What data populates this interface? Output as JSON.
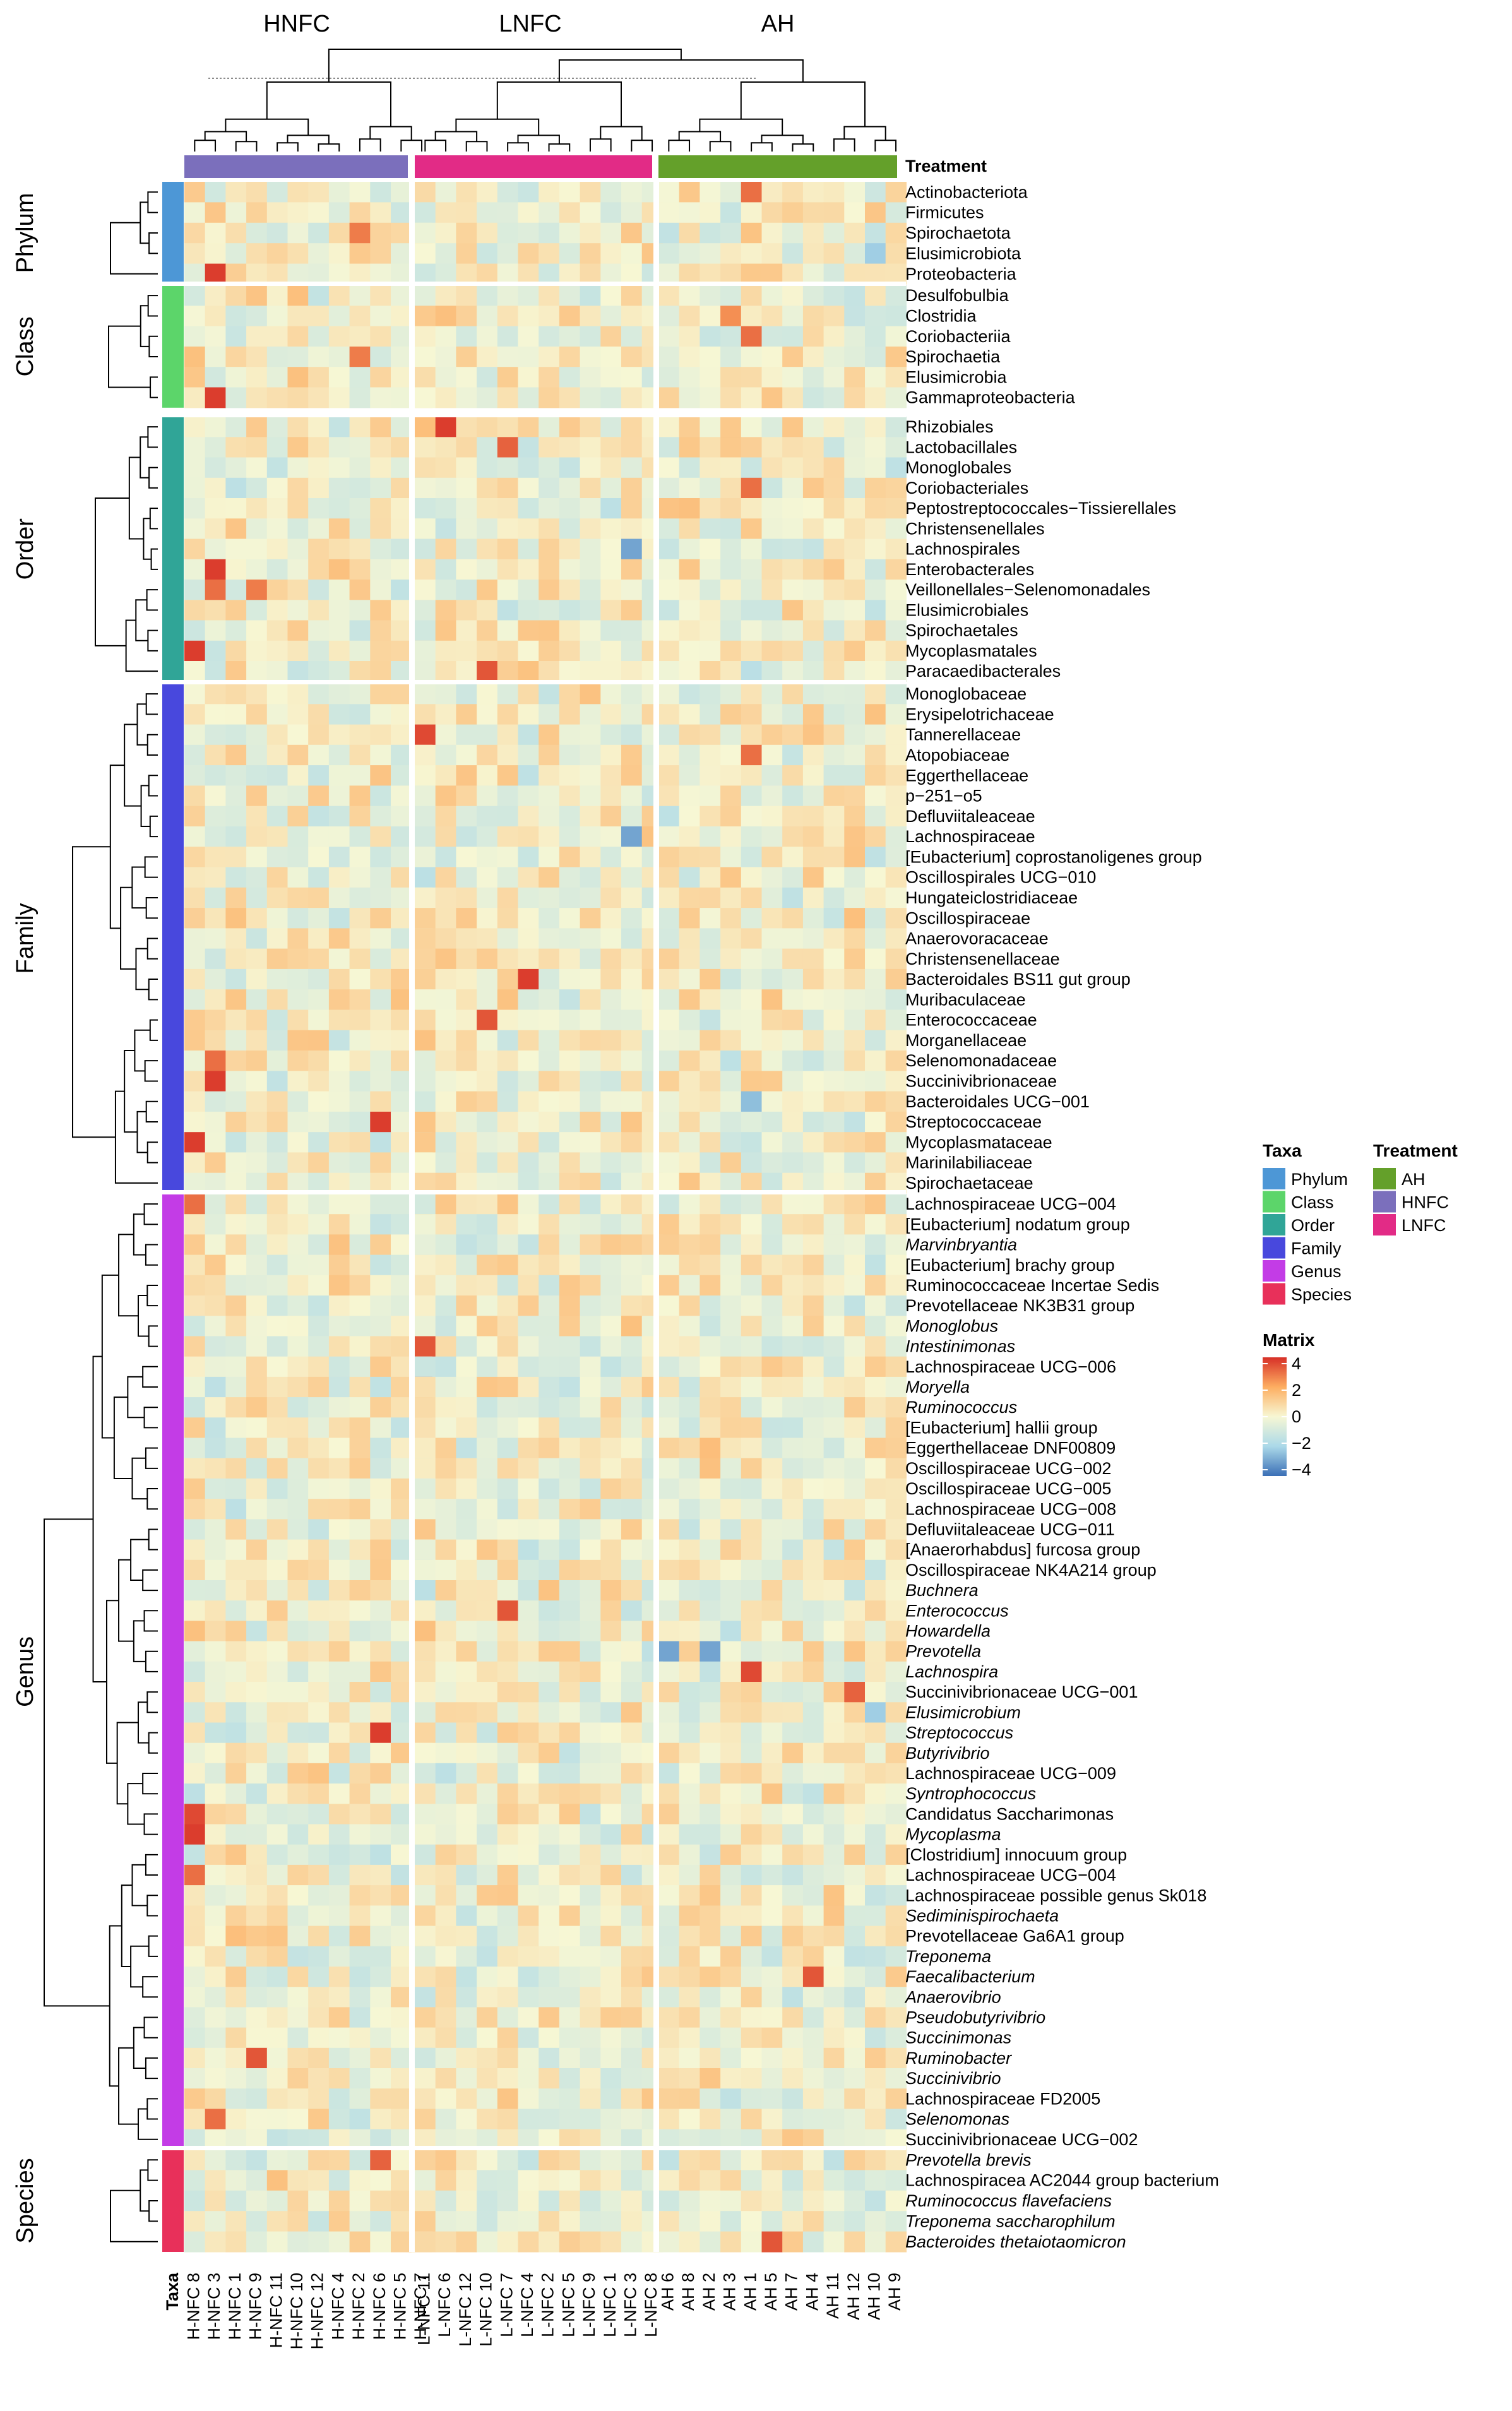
{
  "chart_data": {
    "type": "heatmap",
    "title": "",
    "column_groups": [
      {
        "name": "HNFC",
        "columns": [
          "H-NFC 8",
          "H-NFC 3",
          "H-NFC 1",
          "H-NFC 9",
          "H-NFC 11",
          "H-NFC 10",
          "H-NFC 12",
          "H-NFC 4",
          "H-NFC 2",
          "H-NFC 6",
          "H-NFC 5",
          "H-NFC 7"
        ]
      },
      {
        "name": "LNFC",
        "columns": [
          "L-NFC 11",
          "L-NFC 6",
          "L-NFC 12",
          "L-NFC 10",
          "L-NFC 7",
          "L-NFC 4",
          "L-NFC 2",
          "L-NFC 5",
          "L-NFC 9",
          "L-NFC 1",
          "L-NFC 3",
          "L-NFC 8"
        ]
      },
      {
        "name": "AH",
        "columns": [
          "AH 6",
          "AH 8",
          "AH 2",
          "AH 3",
          "AH 1",
          "AH 5",
          "AH 7",
          "AH 4",
          "AH 11",
          "AH 12",
          "AH 10",
          "AH 9"
        ]
      }
    ],
    "row_groups": [
      {
        "name": "Phylum",
        "rows": [
          "Actinobacteriota",
          "Firmicutes",
          "Spirochaetota",
          "Elusimicrobiota",
          "Proteobacteria"
        ]
      },
      {
        "name": "Class",
        "rows": [
          "Desulfobulbia",
          "Clostridia",
          "Coriobacteriia",
          "Spirochaetia",
          "Elusimicrobia",
          "Gammaproteobacteria"
        ]
      },
      {
        "name": "Order",
        "rows": [
          "Rhizobiales",
          "Lactobacillales",
          "Monoglobales",
          "Coriobacteriales",
          "Peptostreptococcales−Tissierellales",
          "Christensenellales",
          "Lachnospirales",
          "Enterobacterales",
          "Veillonellales−Selenomonadales",
          "Elusimicrobiales",
          "Spirochaetales",
          "Mycoplasmatales",
          "Paracaedibacterales"
        ]
      },
      {
        "name": "Family",
        "rows": [
          "Monoglobaceae",
          "Erysipelotrichaceae",
          "Tannerellaceae",
          "Atopobiaceae",
          "Eggerthellaceae",
          "p−251−o5",
          "Defluviitaleaceae",
          "Lachnospiraceae",
          "[Eubacterium] coprostanoligenes group",
          "Oscillospirales UCG−010",
          "Hungateiclostridiaceae",
          "Oscillospiraceae",
          "Anaerovoracaceae",
          "Christensenellaceae",
          "Bacteroidales BS11 gut group",
          "Muribaculaceae",
          "Enterococcaceae",
          "Morganellaceae",
          "Selenomonadaceae",
          "Succinivibrionaceae",
          "Bacteroidales UCG−001",
          "Streptococcaceae",
          "Mycoplasmataceae",
          "Marinilabiliaceae",
          "Spirochaetaceae"
        ]
      },
      {
        "name": "Genus",
        "rows": [
          "Lachnospiraceae UCG−004",
          "[Eubacterium] nodatum group",
          "Marvinbryantia",
          "[Eubacterium] brachy group",
          "Ruminococcaceae Incertae Sedis",
          "Prevotellaceae NK3B31 group",
          "Monoglobus",
          "Intestinimonas",
          "Lachnospiraceae UCG−006",
          "Moryella",
          "Ruminococcus",
          "[Eubacterium] hallii group",
          "Eggerthellaceae DNF00809",
          "Oscillospiraceae UCG−002",
          "Oscillospiraceae UCG−005",
          "Lachnospiraceae UCG−008",
          "Defluviitaleaceae UCG−011",
          "[Anaerorhabdus] furcosa group",
          "Oscillospiraceae NK4A214 group",
          "Buchnera",
          "Enterococcus",
          "Howardella",
          "Prevotella",
          "Lachnospira",
          "Succinivibrionaceae UCG−001",
          "Elusimicrobium",
          "Streptococcus",
          "Butyrivibrio",
          "Lachnospiraceae UCG−009",
          "Syntrophococcus",
          "Candidatus Saccharimonas",
          "Mycoplasma",
          "[Clostridium] innocuum group",
          "Lachnospiraceae UCG−004",
          "Lachnospiraceae possible genus Sk018",
          "Sediminispirochaeta",
          "Prevotellaceae Ga6A1 group",
          "Treponema",
          "Faecalibacterium",
          "Anaerovibrio",
          "Pseudobutyrivibrio",
          "Succinimonas",
          "Ruminobacter",
          "Succinivibrio",
          "Lachnospiraceae FD2005",
          "Selenomonas",
          "Succinivibrionaceae UCG−002"
        ]
      },
      {
        "name": "Species",
        "rows": [
          "Prevotella brevis",
          "Lachnospiracea AC2044 group bacterium",
          "Ruminococcus flavefaciens",
          "Treponema saccharophilum",
          "Bacteroides thetaiotaomicron"
        ]
      }
    ],
    "hot_cells": [
      {
        "row": "Actinobacteriota",
        "col": "AH 1",
        "v": 3.0
      },
      {
        "row": "Spirochaetota",
        "col": "H-NFC 2",
        "v": 2.8
      },
      {
        "row": "Proteobacteria",
        "col": "H-NFC 3",
        "v": 3.8
      },
      {
        "row": "Clostridia",
        "col": "AH 3",
        "v": 2.5
      },
      {
        "row": "Coriobacteriia",
        "col": "AH 1",
        "v": 3.0
      },
      {
        "row": "Spirochaetia",
        "col": "H-NFC 2",
        "v": 2.8
      },
      {
        "row": "Gammaproteobacteria",
        "col": "H-NFC 3",
        "v": 3.8
      },
      {
        "row": "Rhizobiales",
        "col": "L-NFC 6",
        "v": 3.8
      },
      {
        "row": "Lactobacillales",
        "col": "L-NFC 7",
        "v": 3.2
      },
      {
        "row": "Coriobacteriales",
        "col": "AH 1",
        "v": 3.0
      },
      {
        "row": "Enterobacterales",
        "col": "H-NFC 3",
        "v": 3.8
      },
      {
        "row": "Veillonellales−Selenomonadales",
        "col": "H-NFC 3",
        "v": 3.0
      },
      {
        "row": "Veillonellales−Selenomonadales",
        "col": "H-NFC 9",
        "v": 2.8
      },
      {
        "row": "Mycoplasmatales",
        "col": "H-NFC 8",
        "v": 3.8
      },
      {
        "row": "Paracaedibacterales",
        "col": "L-NFC 10",
        "v": 3.4
      },
      {
        "row": "Tannerellaceae",
        "col": "L-NFC 11",
        "v": 3.6
      },
      {
        "row": "Atopobiaceae",
        "col": "AH 1",
        "v": 3.0
      },
      {
        "row": "Bacteroidales BS11 gut group",
        "col": "L-NFC 4",
        "v": 3.8
      },
      {
        "row": "Enterococcaceae",
        "col": "L-NFC 10",
        "v": 3.4
      },
      {
        "row": "Selenomonadaceae",
        "col": "H-NFC 3",
        "v": 3.0
      },
      {
        "row": "Succinivibrionaceae",
        "col": "H-NFC 3",
        "v": 3.8
      },
      {
        "row": "Streptococcaceae",
        "col": "H-NFC 6",
        "v": 3.8
      },
      {
        "row": "Mycoplasmataceae",
        "col": "H-NFC 8",
        "v": 3.8
      },
      {
        "row": "Moryella",
        "col": "H-NFC 7",
        "v": 3.6
      },
      {
        "row": "Intestinimonas",
        "col": "L-NFC 11",
        "v": 3.4
      },
      {
        "row": "Enterococcus",
        "col": "L-NFC 7",
        "v": 3.4
      },
      {
        "row": "Lachnospira",
        "col": "AH 1",
        "v": 3.6
      },
      {
        "row": "Succinivibrionaceae UCG−001",
        "col": "AH 12",
        "v": 3.2
      },
      {
        "row": "Streptococcus",
        "col": "H-NFC 6",
        "v": 3.8
      },
      {
        "row": "Candidatus Saccharimonas",
        "col": "H-NFC 8",
        "v": 3.6
      },
      {
        "row": "Mycoplasma",
        "col": "H-NFC 8",
        "v": 3.8
      },
      {
        "row": "Lachnospiraceae UCG−004",
        "col": "H-NFC 8",
        "v": 3.0
      },
      {
        "row": "Faecalibacterium",
        "col": "AH 4",
        "v": 3.4
      },
      {
        "row": "Ruminobacter",
        "col": "H-NFC 9",
        "v": 3.4
      },
      {
        "row": "Selenomonas",
        "col": "H-NFC 3",
        "v": 3.0
      },
      {
        "row": "Prevotella brevis",
        "col": "H-NFC 6",
        "v": 3.2
      },
      {
        "row": "Bacteroides thetaiotaomicron",
        "col": "AH 5",
        "v": 3.4
      }
    ],
    "cold_cells": [
      {
        "row": "Prevotella",
        "col": "AH 6",
        "v": -3.0
      },
      {
        "row": "Prevotella",
        "col": "AH 2",
        "v": -3.0
      },
      {
        "row": "Lachnospiraceae",
        "col": "L-NFC 3",
        "v": -3.0
      },
      {
        "row": "Lachnospirales",
        "col": "L-NFC 3",
        "v": -3.0
      },
      {
        "row": "Bacteroidales UCG−001",
        "col": "AH 1",
        "v": -2.5
      },
      {
        "row": "Elusimicrobium",
        "col": "AH 10",
        "v": -2.2
      },
      {
        "row": "Elusimicrobiota",
        "col": "AH 10",
        "v": -2.2
      }
    ],
    "legend": {
      "taxa_title": "Taxa",
      "taxa": [
        {
          "name": "Phylum",
          "color": "#4d97d6"
        },
        {
          "name": "Class",
          "color": "#5cd56a"
        },
        {
          "name": "Order",
          "color": "#30a597"
        },
        {
          "name": "Family",
          "color": "#4848dd"
        },
        {
          "name": "Genus",
          "color": "#c33ce6"
        },
        {
          "name": "Species",
          "color": "#e8305a"
        }
      ],
      "treatment_title": "Treatment",
      "treatment": [
        {
          "name": "AH",
          "color": "#64a02a"
        },
        {
          "name": "HNFC",
          "color": "#7b6fbc"
        },
        {
          "name": "LNFC",
          "color": "#e22b86"
        }
      ],
      "matrix_title": "Matrix",
      "matrix_ticks": [
        "4",
        "2",
        "0",
        "−2",
        "−4"
      ],
      "matrix_range": [
        -4,
        4
      ]
    },
    "labels": {
      "treatment_header": "Treatment",
      "taxa_axis_label": "Taxa"
    },
    "italic_rows": [
      "Marvinbryantia",
      "Monoglobus",
      "Intestinimonas",
      "Moryella",
      "Ruminococcus",
      "Buchnera",
      "Enterococcus",
      "Howardella",
      "Prevotella",
      "Lachnospira",
      "Elusimicrobium",
      "Streptococcus",
      "Butyrivibrio",
      "Syntrophococcus",
      "Mycoplasma",
      "Sediminispirochaeta",
      "Treponema",
      "Faecalibacterium",
      "Anaerovibrio",
      "Pseudobutyrivibrio",
      "Succinimonas",
      "Ruminobacter",
      "Succinivibrio",
      "Selenomonas",
      "Prevotella brevis",
      "Ruminococcus flavefaciens",
      "Treponema saccharophilum",
      "Bacteroides thetaiotaomicron"
    ]
  }
}
